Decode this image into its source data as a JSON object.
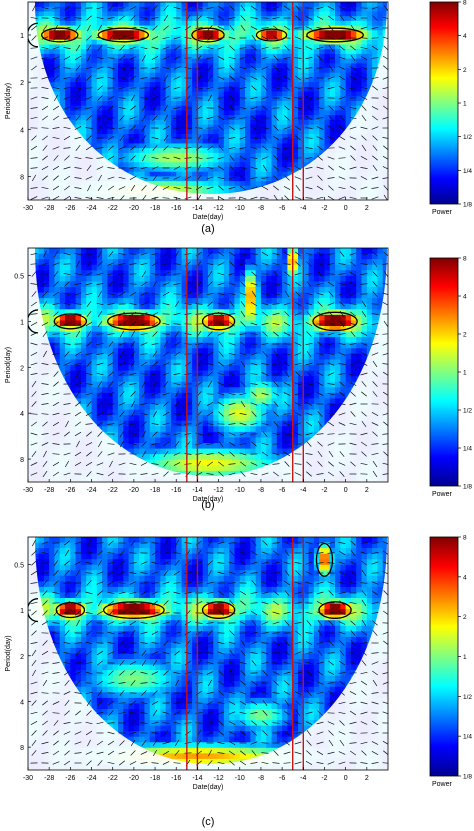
{
  "chart_data": [
    {
      "type": "heatmap",
      "panel_label": "(a)",
      "xlabel": "Date(day)",
      "ylabel": "Period(day)",
      "x_ticks": [
        -30,
        -28,
        -26,
        -24,
        -22,
        -20,
        -18,
        -16,
        -14,
        -12,
        -10,
        -8,
        -6,
        -4,
        -2,
        0,
        2
      ],
      "y_ticks": [
        "1",
        "2",
        "4",
        "8"
      ],
      "y_tick_values": [
        1,
        2,
        4,
        8
      ],
      "xlim": [
        -30,
        4
      ],
      "ylim_log2": [
        -0.7,
        3.5
      ],
      "colorbar_label": "Power",
      "colorbar_ticks": [
        "8",
        "4",
        "2",
        "1",
        "1/2",
        "1/4",
        "1/8"
      ],
      "vertical_lines": [
        -15,
        -14,
        -5,
        -4
      ],
      "vertical_line_color": "#cc1111",
      "cone_of_influence": true,
      "phase_arrows": true
    },
    {
      "type": "heatmap",
      "panel_label": "(b)",
      "xlabel": "Date(day)",
      "ylabel": "Period(day)",
      "x_ticks": [
        -30,
        -28,
        -26,
        -24,
        -22,
        -20,
        -18,
        -16,
        -14,
        -12,
        -10,
        -8,
        -6,
        -4,
        -2,
        0,
        2
      ],
      "y_ticks": [
        "0.5",
        "1",
        "2",
        "4",
        "8"
      ],
      "y_tick_values": [
        0.5,
        1,
        2,
        4,
        8
      ],
      "xlim": [
        -30,
        4
      ],
      "ylim_log2": [
        -1.6,
        3.5
      ],
      "colorbar_label": "Power",
      "colorbar_ticks": [
        "8",
        "4",
        "2",
        "1",
        "1/2",
        "1/4",
        "1/8"
      ],
      "vertical_lines": [
        -15,
        -14,
        -5,
        -4
      ],
      "vertical_line_color": "#cc1111",
      "cone_of_influence": true,
      "phase_arrows": true
    },
    {
      "type": "heatmap",
      "panel_label": "(c)",
      "xlabel": "Date(day)",
      "ylabel": "Period(day)",
      "x_ticks": [
        -30,
        -28,
        -26,
        -24,
        -22,
        -20,
        -18,
        -16,
        -14,
        -12,
        -10,
        -8,
        -6,
        -4,
        -2,
        0,
        2
      ],
      "y_ticks": [
        "0.5",
        "1",
        "2",
        "4",
        "8"
      ],
      "y_tick_values": [
        0.5,
        1,
        2,
        4,
        8
      ],
      "xlim": [
        -30,
        4
      ],
      "ylim_log2": [
        -1.6,
        3.5
      ],
      "colorbar_label": "Power",
      "colorbar_ticks": [
        "8",
        "4",
        "2",
        "1",
        "1/2",
        "1/4",
        "1/8"
      ],
      "vertical_lines": [
        -15,
        -14,
        -5,
        -4
      ],
      "vertical_line_color": "#cc1111",
      "cone_of_influence": true,
      "phase_arrows": true
    }
  ],
  "colormap": [
    "#00008f",
    "#0000ff",
    "#0080ff",
    "#00ffff",
    "#80ff80",
    "#ffff00",
    "#ff8000",
    "#ff0000",
    "#800000"
  ]
}
